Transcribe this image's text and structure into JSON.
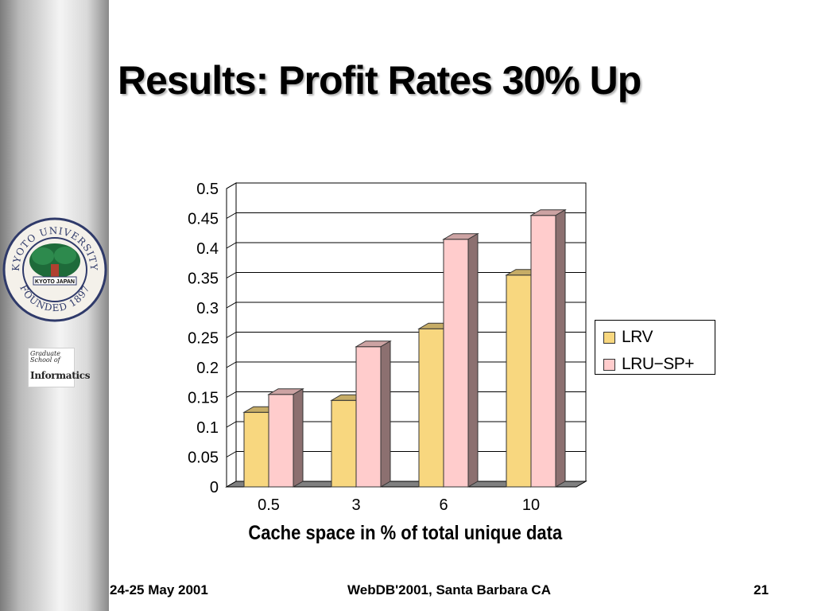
{
  "slide": {
    "title": "Results: Profit Rates 30% Up",
    "footer_left": "24-25 May 2001",
    "footer_center": "WebDB'2001,  Santa Barbara CA",
    "footer_right": "21"
  },
  "sidebar": {
    "seal_top_text": "KYOTO UNIVERSITY",
    "seal_bottom_text": "FOUNDED 1897",
    "seal_center_text": "KYOTO JAPAN",
    "school_line1": "Graduate School of",
    "school_line2": "Informatics"
  },
  "colors": {
    "lrv": "#f8d77f",
    "lru_sp": "#ffcccc"
  },
  "chart_data": {
    "type": "bar",
    "categories": [
      "0.5",
      "3",
      "6",
      "10"
    ],
    "series": [
      {
        "name": "LRV",
        "values": [
          0.125,
          0.145,
          0.265,
          0.355
        ]
      },
      {
        "name": "LRU−SP+",
        "values": [
          0.155,
          0.235,
          0.415,
          0.455
        ]
      }
    ],
    "xlabel": "Cache space in % of total unique data",
    "ylabel": "",
    "ylim": [
      0,
      0.5
    ],
    "yticks": [
      "0",
      "0.05",
      "0.1",
      "0.15",
      "0.2",
      "0.25",
      "0.3",
      "0.35",
      "0.4",
      "0.45",
      "0.5"
    ],
    "grid": true,
    "legend_position": "right",
    "style": "3d-column"
  }
}
